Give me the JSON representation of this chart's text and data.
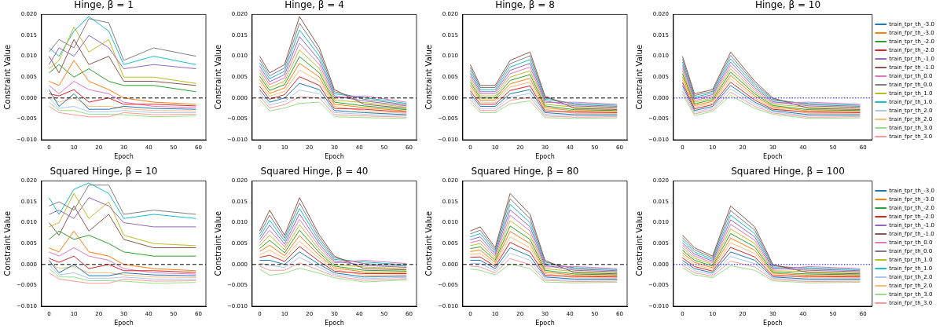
{
  "chart_data": [
    {
      "type": "line",
      "title": "Hinge, β = 1",
      "xlabel": "Epoch",
      "ylabel": "Constraint Value",
      "grid": false,
      "marker": "none",
      "legend": false,
      "xlim": [
        -3,
        63
      ],
      "xticks": [
        0,
        10,
        20,
        30,
        40,
        50,
        60
      ],
      "ylim": [
        -0.01,
        0.02
      ],
      "yticks": [
        {
          "value": -0.01,
          "label": "−0.010"
        },
        {
          "value": -0.005,
          "label": "−0.005"
        },
        {
          "value": 0,
          "label": "0.000"
        },
        {
          "value": 0.005,
          "label": "0.005"
        },
        {
          "value": 0.01,
          "label": "0.010"
        },
        {
          "value": 0.015,
          "label": "0.015"
        },
        {
          "value": 0.02,
          "label": "0.020"
        }
      ],
      "ref_lines": [
        {
          "axis": "y",
          "value": 0,
          "color": "#000000",
          "line_style": "dashed"
        }
      ],
      "x": [
        0,
        4,
        10,
        16,
        24,
        30,
        42,
        59
      ],
      "series": [
        {
          "color": "#1f77b4",
          "values": [
            0.002,
            -0.002,
            0.001,
            -0.0027,
            -0.0027,
            -0.002,
            -0.0025,
            -0.0027
          ]
        },
        {
          "color": "#ff7f0e",
          "values": [
            0.004,
            0.003,
            0.009,
            0.004,
            0.002,
            0,
            -0.001,
            -0.0015
          ]
        },
        {
          "color": "#2ca02c",
          "values": [
            0.006,
            0.008,
            0.005,
            0.007,
            0.004,
            0.003,
            0.003,
            0.0015
          ]
        },
        {
          "color": "#d62728",
          "values": [
            0.001,
            0.0005,
            0.002,
            -0.001,
            0,
            -0.0015,
            -0.0015,
            -0.0019
          ]
        },
        {
          "color": "#9467bd",
          "values": [
            0.008,
            0.012,
            0.01,
            0.015,
            0.012,
            0.007,
            0.008,
            0.007
          ]
        },
        {
          "color": "#8c564b",
          "values": [
            0.01,
            0.006,
            0.014,
            0.008,
            0.01,
            0.004,
            0.004,
            0.003
          ]
        },
        {
          "color": "#e377c2",
          "values": [
            0.003,
            0.001,
            0.004,
            0.002,
            0.001,
            -0.001,
            -0.002,
            -0.0023
          ]
        },
        {
          "color": "#7f7f7f",
          "values": [
            0.011,
            0.014,
            0.012,
            0.019,
            0.018,
            0.009,
            0.012,
            0.01
          ]
        },
        {
          "color": "#bcbd22",
          "values": [
            0.007,
            0.009,
            0.017,
            0.011,
            0.014,
            0.005,
            0.005,
            0.0035
          ]
        },
        {
          "color": "#17becf",
          "values": [
            0.012,
            0.01,
            0.016,
            0.0195,
            0.016,
            0.008,
            0.01,
            0.008
          ]
        },
        {
          "color": "#aec7e8",
          "values": [
            0,
            -0.0025,
            -0.002,
            -0.0033,
            -0.0033,
            -0.003,
            -0.0035,
            -0.0035
          ]
        },
        {
          "color": "#ffbb78",
          "values": [
            0.0005,
            -0.001,
            0,
            -0.002,
            -0.002,
            -0.0025,
            -0.003,
            -0.0031
          ]
        },
        {
          "color": "#98df8a",
          "values": [
            -0.001,
            -0.003,
            -0.003,
            -0.0039,
            -0.0039,
            -0.004,
            -0.0045,
            -0.0043
          ]
        },
        {
          "color": "#ff9896",
          "values": [
            -0.002,
            -0.0035,
            -0.004,
            -0.0045,
            -0.0045,
            -0.0035,
            -0.004,
            -0.0039
          ]
        }
      ]
    },
    {
      "type": "line",
      "title": "Hinge, β = 4",
      "xlabel": "Epoch",
      "ylabel": "Constraint Value",
      "grid": false,
      "marker": "none",
      "legend": false,
      "xlim": [
        -3,
        63
      ],
      "xticks": [
        0,
        10,
        20,
        30,
        40,
        50,
        60
      ],
      "ylim": [
        -0.01,
        0.02
      ],
      "yticks": [
        {
          "value": -0.01,
          "label": "−0.010"
        },
        {
          "value": -0.005,
          "label": "−0.005"
        },
        {
          "value": 0,
          "label": "0.000"
        },
        {
          "value": 0.005,
          "label": "0.005"
        },
        {
          "value": 0.01,
          "label": "0.010"
        },
        {
          "value": 0.015,
          "label": "0.015"
        },
        {
          "value": 0.02,
          "label": "0.020"
        }
      ],
      "ref_lines": [
        {
          "axis": "y",
          "value": 0,
          "color": "#000000",
          "line_style": "dashed"
        }
      ],
      "x": [
        0,
        4,
        10,
        16,
        24,
        30,
        42,
        59
      ],
      "series": [
        {
          "color": "#1f77b4",
          "values": [
            0.002,
            -0.001,
            0,
            0.0035,
            0.002,
            -0.003,
            -0.0035,
            -0.004
          ]
        },
        {
          "color": "#ff7f0e",
          "values": [
            0.0044,
            0.0011,
            0.0024,
            0.0083,
            0.005,
            -0.0015,
            -0.0023,
            -0.0031
          ]
        },
        {
          "color": "#2ca02c",
          "values": [
            0.0052,
            0.0018,
            0.0032,
            0.0099,
            0.006,
            -0.001,
            -0.0019,
            -0.0028
          ]
        },
        {
          "color": "#d62728",
          "values": [
            0.0028,
            -0.0003,
            0.0008,
            0.0051,
            0.003,
            -0.0025,
            -0.0027,
            -0.0034
          ]
        },
        {
          "color": "#9467bd",
          "values": [
            0.0076,
            0.0039,
            0.0056,
            0.0147,
            0.009,
            0.0005,
            -0.0007,
            -0.0019
          ]
        },
        {
          "color": "#8c564b",
          "values": [
            0.01,
            0.006,
            0.008,
            0.0195,
            0.012,
            0.002,
            -0.0015,
            -0.0025
          ]
        },
        {
          "color": "#e377c2",
          "values": [
            0.0068,
            0.0032,
            0.0048,
            0.0131,
            0.008,
            0,
            0.0005,
            -0.001
          ]
        },
        {
          "color": "#7f7f7f",
          "values": [
            0.0092,
            0.0053,
            0.0072,
            0.0179,
            0.011,
            0.0015,
            -0.0003,
            -0.0016
          ]
        },
        {
          "color": "#bcbd22",
          "values": [
            0.006,
            0.0025,
            0.004,
            0.0115,
            0.007,
            -0.0005,
            -0.0011,
            -0.0022
          ]
        },
        {
          "color": "#17becf",
          "values": [
            0.0084,
            0.0046,
            0.0064,
            0.0163,
            0.01,
            0.001,
            0.0001,
            -0.0013
          ]
        },
        {
          "color": "#aec7e8",
          "values": [
            0.0012,
            -0.0017,
            -0.0008,
            0.0019,
            0.001,
            -0.0035,
            -0.0039,
            -0.0043
          ]
        },
        {
          "color": "#ffbb78",
          "values": [
            0.0036,
            0.0004,
            0.0016,
            0.0067,
            0.004,
            -0.002,
            -0.0031,
            -0.0037
          ]
        },
        {
          "color": "#98df8a",
          "values": [
            -0.0004,
            -0.0031,
            -0.0024,
            -0.0013,
            -0.001,
            -0.0045,
            -0.0047,
            -0.0049
          ]
        },
        {
          "color": "#ff9896",
          "values": [
            0.0004,
            -0.0024,
            -0.0016,
            0.0003,
            0,
            -0.004,
            -0.0043,
            -0.0046
          ]
        }
      ]
    },
    {
      "type": "line",
      "title": "Hinge, β = 8",
      "xlabel": "Epoch",
      "ylabel": "Constraint Value",
      "grid": false,
      "marker": "none",
      "legend": false,
      "xlim": [
        -3,
        63
      ],
      "xticks": [
        0,
        10,
        20,
        30,
        40,
        50,
        60
      ],
      "ylim": [
        -0.01,
        0.02
      ],
      "yticks": [
        {
          "value": -0.01,
          "label": "−0.010"
        },
        {
          "value": -0.005,
          "label": "−0.005"
        },
        {
          "value": 0,
          "label": "0.000"
        },
        {
          "value": 0.005,
          "label": "0.005"
        },
        {
          "value": 0.01,
          "label": "0.010"
        },
        {
          "value": 0.015,
          "label": "0.015"
        },
        {
          "value": 0.02,
          "label": "0.020"
        }
      ],
      "ref_lines": [
        {
          "axis": "y",
          "value": 0,
          "color": "#000000",
          "line_style": "dashed"
        }
      ],
      "x": [
        0,
        4,
        10,
        16,
        24,
        30,
        42,
        59
      ],
      "series": [
        {
          "color": "#1f77b4",
          "values": [
            0.001,
            -0.002,
            -0.002,
            0.001,
            0.002,
            -0.0035,
            -0.004,
            -0.004
          ]
        },
        {
          "color": "#ff7f0e",
          "values": [
            0.0031,
            -0.0005,
            -0.0005,
            0.0034,
            0.0047,
            -0.0023,
            -0.0031,
            -0.00325
          ]
        },
        {
          "color": "#2ca02c",
          "values": [
            0.0038,
            0,
            0,
            0.0042,
            0.0056,
            -0.0019,
            -0.0028,
            -0.003
          ]
        },
        {
          "color": "#d62728",
          "values": [
            0.0017,
            -0.0015,
            -0.0015,
            0.0018,
            0.0029,
            -0.0031,
            -0.0034,
            -0.0035
          ]
        },
        {
          "color": "#9467bd",
          "values": [
            0.0059,
            0.0015,
            0.0015,
            0.0066,
            0.0083,
            -0.0007,
            -0.0019,
            -0.00225
          ]
        },
        {
          "color": "#8c564b",
          "values": [
            0.008,
            0.003,
            0.003,
            0.009,
            0.011,
            0.0005,
            -0.0025,
            -0.00275
          ]
        },
        {
          "color": "#e377c2",
          "values": [
            0.0052,
            0.001,
            0.001,
            0.0058,
            0.0074,
            -0.0011,
            -0.001,
            -0.0015
          ]
        },
        {
          "color": "#7f7f7f",
          "values": [
            0.0073,
            0.0025,
            0.0025,
            0.0082,
            0.0101,
            0.0001,
            -0.0016,
            -0.002
          ]
        },
        {
          "color": "#bcbd22",
          "values": [
            0.0045,
            0.0005,
            0.0005,
            0.005,
            0.0065,
            -0.0015,
            -0.0022,
            -0.0025
          ]
        },
        {
          "color": "#17becf",
          "values": [
            0.0066,
            0.002,
            0.002,
            0.0074,
            0.0092,
            -0.0003,
            -0.0013,
            -0.00175
          ]
        },
        {
          "color": "#aec7e8",
          "values": [
            0.0003,
            -0.0025,
            -0.0025,
            0.0002,
            0.0011,
            -0.0039,
            -0.0043,
            -0.00425
          ]
        },
        {
          "color": "#ffbb78",
          "values": [
            0.0024,
            -0.001,
            -0.001,
            0.0026,
            0.0038,
            -0.0027,
            -0.0037,
            -0.00375
          ]
        },
        {
          "color": "#98df8a",
          "values": [
            -0.0011,
            -0.0035,
            -0.0035,
            -0.0014,
            -0.0007,
            -0.0047,
            -0.0049,
            -0.00475
          ]
        },
        {
          "color": "#ff9896",
          "values": [
            -0.0004,
            -0.003,
            -0.003,
            -0.0006,
            0.0002,
            -0.0043,
            -0.0046,
            -0.0045
          ]
        }
      ]
    },
    {
      "type": "line",
      "title": "Hinge, β = 10",
      "xlabel": "Epoch",
      "ylabel": "Constraint Value",
      "grid": false,
      "marker": "none",
      "legend": "right",
      "xlim": [
        -3,
        63
      ],
      "xticks": [
        0,
        10,
        20,
        30,
        40,
        50,
        60
      ],
      "ylim": [
        -0.01,
        0.02
      ],
      "yticks": [
        {
          "value": -0.01,
          "label": "−0.010"
        },
        {
          "value": -0.005,
          "label": "−0.005"
        },
        {
          "value": 0,
          "label": "0.000"
        },
        {
          "value": 0.005,
          "label": "0.005"
        },
        {
          "value": 0.01,
          "label": "0.010"
        },
        {
          "value": 0.015,
          "label": "0.015"
        },
        {
          "value": 0.02,
          "label": "0.020"
        }
      ],
      "ref_lines": [
        {
          "axis": "y",
          "value": 0,
          "color": "#0000ff",
          "line_style": "dotted"
        }
      ],
      "x": [
        0,
        4,
        10,
        16,
        24,
        30,
        42,
        59
      ],
      "series": [
        {
          "name": "train_tpr_th_-3.0",
          "color": "#1f77b4",
          "values": [
            0.003,
            -0.003,
            -0.002,
            0.003,
            -0.001,
            -0.003,
            -0.004,
            -0.004
          ]
        },
        {
          "name": "train_fpr_th_-3.0",
          "color": "#ff7f0e",
          "values": [
            0.0051,
            -0.0018,
            -0.0008,
            0.0054,
            0.0005,
            -0.0021,
            -0.0031,
            -0.00325
          ]
        },
        {
          "name": "train_tpr_th_-2.0",
          "color": "#2ca02c",
          "values": [
            0.0058,
            -0.0014,
            -0.0004,
            0.0062,
            0.001,
            -0.0018,
            -0.0028,
            -0.003
          ]
        },
        {
          "name": "train_fpr_th_-2.0",
          "color": "#d62728",
          "values": [
            0.0037,
            -0.0026,
            -0.0016,
            0.0038,
            -0.0005,
            -0.0027,
            -0.0034,
            -0.0035
          ]
        },
        {
          "name": "train_tpr_th_-1.0",
          "color": "#9467bd",
          "values": [
            0.0079,
            -0.0002,
            0.0008,
            0.0086,
            0.0025,
            -0.0009,
            -0.0019,
            -0.00225
          ]
        },
        {
          "name": "train_fpr_th_-1.0",
          "color": "#8c564b",
          "values": [
            0.01,
            0.001,
            0.002,
            0.011,
            0.004,
            0,
            -0.0025,
            -0.00275
          ]
        },
        {
          "name": "train_tpr_th_0.0",
          "color": "#e377c2",
          "values": [
            0.0072,
            -0.0006,
            0.0004,
            0.0078,
            0.002,
            -0.0012,
            -0.001,
            -0.0015
          ]
        },
        {
          "name": "train_fpr_th_0.0",
          "color": "#7f7f7f",
          "values": [
            0.0093,
            0.0006,
            0.0016,
            0.0102,
            0.0035,
            -0.0003,
            -0.0016,
            -0.002
          ]
        },
        {
          "name": "train_tpr_th_1.0",
          "color": "#bcbd22",
          "values": [
            0.0065,
            -0.001,
            0,
            0.007,
            0.0015,
            -0.0015,
            -0.0022,
            -0.0025
          ]
        },
        {
          "name": "train_fpr_th_1.0",
          "color": "#17becf",
          "values": [
            0.0086,
            0.0002,
            0.0012,
            0.0094,
            0.003,
            -0.0006,
            -0.0013,
            -0.00175
          ]
        },
        {
          "name": "train_tpr_th_2.0",
          "color": "#aec7e8",
          "values": [
            0.0023,
            -0.0034,
            -0.0024,
            0.0022,
            -0.0015,
            -0.0033,
            -0.0043,
            -0.00425
          ]
        },
        {
          "name": "train_fpr_th_2.0",
          "color": "#ffbb78",
          "values": [
            0.0044,
            -0.0022,
            -0.0012,
            0.0046,
            0,
            -0.0024,
            -0.0037,
            -0.00375
          ]
        },
        {
          "name": "train_tpr_th_3.0",
          "color": "#98df8a",
          "values": [
            0.0009,
            -0.0042,
            -0.0032,
            0.0006,
            -0.0025,
            -0.0039,
            -0.0049,
            -0.00475
          ]
        },
        {
          "name": "train_fpr_th_3.0",
          "color": "#ff9896",
          "values": [
            0.0016,
            -0.0038,
            -0.0028,
            0.0014,
            -0.002,
            -0.0036,
            -0.0046,
            -0.0045
          ]
        }
      ]
    },
    {
      "type": "line",
      "title": "Squared Hinge, β = 10",
      "xlabel": "Epoch",
      "ylabel": "Constraint Value",
      "grid": false,
      "marker": "none",
      "legend": false,
      "xlim": [
        -3,
        63
      ],
      "xticks": [
        0,
        10,
        20,
        30,
        40,
        50,
        60
      ],
      "ylim": [
        -0.01,
        0.02
      ],
      "yticks": [
        {
          "value": -0.01,
          "label": "−0.010"
        },
        {
          "value": -0.005,
          "label": "−0.005"
        },
        {
          "value": 0,
          "label": "0.000"
        },
        {
          "value": 0.005,
          "label": "0.005"
        },
        {
          "value": 0.01,
          "label": "0.010"
        },
        {
          "value": 0.015,
          "label": "0.015"
        },
        {
          "value": 0.02,
          "label": "0.020"
        }
      ],
      "ref_lines": [
        {
          "axis": "y",
          "value": 0,
          "color": "#000000",
          "line_style": "dashed"
        }
      ],
      "x": [
        0,
        4,
        10,
        16,
        24,
        30,
        42,
        59
      ],
      "series": [
        {
          "color": "#1f77b4",
          "values": [
            0.001,
            -0.002,
            0,
            -0.0027,
            -0.0027,
            -0.002,
            -0.0025,
            -0.0027
          ]
        },
        {
          "color": "#ff7f0e",
          "values": [
            0.004,
            0.003,
            0.008,
            0.003,
            0.002,
            0,
            -0.001,
            -0.0015
          ]
        },
        {
          "color": "#2ca02c",
          "values": [
            0.006,
            0.008,
            0.006,
            0.007,
            0.005,
            0.003,
            0.002,
            0.002
          ]
        },
        {
          "color": "#d62728",
          "values": [
            0.0015,
            0.0005,
            0.002,
            -0.001,
            0,
            -0.0015,
            -0.0015,
            -0.0019
          ]
        },
        {
          "color": "#9467bd",
          "values": [
            0.012,
            0.013,
            0.011,
            0.016,
            0.014,
            0.01,
            0.009,
            0.009
          ]
        },
        {
          "color": "#8c564b",
          "values": [
            0.01,
            0.007,
            0.014,
            0.008,
            0.012,
            0.006,
            0.004,
            0.004
          ]
        },
        {
          "color": "#e377c2",
          "values": [
            0.003,
            0.002,
            0.004,
            0.002,
            0.001,
            -0.001,
            -0.002,
            -0.0023
          ]
        },
        {
          "color": "#7f7f7f",
          "values": [
            0.014,
            0.015,
            0.013,
            0.019,
            0.019,
            0.012,
            0.013,
            0.012
          ]
        },
        {
          "color": "#bcbd22",
          "values": [
            0.009,
            0.01,
            0.017,
            0.011,
            0.015,
            0.007,
            0.005,
            0.0045
          ]
        },
        {
          "color": "#17becf",
          "values": [
            0.016,
            0.012,
            0.018,
            0.0195,
            0.017,
            0.011,
            0.012,
            0.011
          ]
        },
        {
          "color": "#aec7e8",
          "values": [
            0,
            -0.0025,
            -0.002,
            -0.0033,
            -0.0033,
            -0.003,
            -0.0035,
            -0.0035
          ]
        },
        {
          "color": "#ffbb78",
          "values": [
            0.0005,
            -0.001,
            -0.0005,
            -0.002,
            -0.002,
            -0.0025,
            -0.003,
            -0.0031
          ]
        },
        {
          "color": "#98df8a",
          "values": [
            -0.001,
            -0.003,
            -0.003,
            -0.0039,
            -0.0039,
            -0.004,
            -0.0045,
            -0.0043
          ]
        },
        {
          "color": "#ff9896",
          "values": [
            -0.002,
            -0.0035,
            -0.004,
            -0.0045,
            -0.0045,
            -0.0035,
            -0.004,
            -0.0039
          ]
        }
      ]
    },
    {
      "type": "line",
      "title": "Squared Hinge, β = 40",
      "xlabel": "Epoch",
      "ylabel": "Constraint Value",
      "grid": false,
      "marker": "none",
      "legend": false,
      "xlim": [
        -3,
        63
      ],
      "xticks": [
        0,
        10,
        20,
        30,
        40,
        50,
        60
      ],
      "ylim": [
        -0.01,
        0.02
      ],
      "yticks": [
        {
          "value": -0.01,
          "label": "−0.010"
        },
        {
          "value": -0.005,
          "label": "−0.005"
        },
        {
          "value": 0,
          "label": "0.000"
        },
        {
          "value": 0.005,
          "label": "0.005"
        },
        {
          "value": 0.01,
          "label": "0.010"
        },
        {
          "value": 0.015,
          "label": "0.015"
        },
        {
          "value": 0.02,
          "label": "0.020"
        }
      ],
      "ref_lines": [
        {
          "axis": "y",
          "value": 0,
          "color": "#000000",
          "line_style": "dashed"
        }
      ],
      "x": [
        0,
        4,
        10,
        16,
        24,
        30,
        42,
        59
      ],
      "series": [
        {
          "color": "#1f77b4",
          "values": [
            0.001,
            0.001,
            0,
            0.003,
            0,
            -0.002,
            -0.003,
            -0.0028
          ]
        },
        {
          "color": "#ff7f0e",
          "values": [
            0.0031,
            0.0046,
            0.0021,
            0.0069,
            0.0021,
            -0.0008,
            -0.0018,
            -0.0019
          ]
        },
        {
          "color": "#2ca02c",
          "values": [
            0.0038,
            0.0058,
            0.0028,
            0.0082,
            0.0028,
            -0.0004,
            -0.0014,
            -0.0016
          ]
        },
        {
          "color": "#d62728",
          "values": [
            0.0017,
            0.0022,
            0.0007,
            0.0043,
            0.0007,
            -0.0016,
            -0.0022,
            -0.0022
          ]
        },
        {
          "color": "#9467bd",
          "values": [
            0.0059,
            0.0094,
            0.0049,
            0.0121,
            0.0049,
            0.0008,
            -0.0002,
            -0.0007
          ]
        },
        {
          "color": "#8c564b",
          "values": [
            0.008,
            0.013,
            0.007,
            0.016,
            0.007,
            0.002,
            -0.001,
            -0.0013
          ]
        },
        {
          "color": "#e377c2",
          "values": [
            0.0052,
            0.0082,
            0.0042,
            0.0108,
            0.0042,
            0.0004,
            0.001,
            0.0002
          ]
        },
        {
          "color": "#7f7f7f",
          "values": [
            0.0073,
            0.0118,
            0.0063,
            0.0147,
            0.0063,
            0.0016,
            0.0002,
            -0.0004
          ]
        },
        {
          "color": "#bcbd22",
          "values": [
            0.0045,
            0.007,
            0.0035,
            0.0095,
            0.0035,
            0,
            -0.0006,
            -0.001
          ]
        },
        {
          "color": "#17becf",
          "values": [
            0.0066,
            0.0106,
            0.0056,
            0.0134,
            0.0056,
            0.0012,
            0.0006,
            -0.0001
          ]
        },
        {
          "color": "#aec7e8",
          "values": [
            0.0003,
            -0.0002,
            -0.0007,
            0.0017,
            -0.0007,
            -0.0024,
            -0.0034,
            -0.0031
          ]
        },
        {
          "color": "#ffbb78",
          "values": [
            0.0024,
            0.0034,
            0.0014,
            0.0056,
            0.0014,
            -0.0012,
            -0.0026,
            -0.0025
          ]
        },
        {
          "color": "#98df8a",
          "values": [
            -0.0011,
            -0.0026,
            -0.0021,
            -0.0009,
            -0.0021,
            -0.0032,
            -0.0042,
            -0.0037
          ]
        },
        {
          "color": "#ff9896",
          "values": [
            -0.0004,
            -0.0014,
            -0.0014,
            0.0004,
            -0.0014,
            -0.0028,
            -0.0038,
            -0.0034
          ]
        }
      ]
    },
    {
      "type": "line",
      "title": "Squared Hinge, β = 80",
      "xlabel": "Epoch",
      "ylabel": "Constraint Value",
      "grid": false,
      "marker": "none",
      "legend": false,
      "xlim": [
        -3,
        63
      ],
      "xticks": [
        0,
        10,
        20,
        30,
        40,
        50,
        60
      ],
      "ylim": [
        -0.01,
        0.02
      ],
      "yticks": [
        {
          "value": -0.01,
          "label": "−0.010"
        },
        {
          "value": -0.005,
          "label": "−0.005"
        },
        {
          "value": 0,
          "label": "0.000"
        },
        {
          "value": 0.005,
          "label": "0.005"
        },
        {
          "value": 0.01,
          "label": "0.010"
        },
        {
          "value": 0.015,
          "label": "0.015"
        },
        {
          "value": 0.02,
          "label": "0.020"
        }
      ],
      "ref_lines": [
        {
          "axis": "y",
          "value": 0,
          "color": "#000000",
          "line_style": "dashed"
        }
      ],
      "x": [
        0,
        4,
        10,
        16,
        24,
        30,
        42,
        59
      ],
      "series": [
        {
          "color": "#1f77b4",
          "values": [
            0.001,
            0.001,
            -0.001,
            0.004,
            0.002,
            -0.003,
            -0.0035,
            -0.0035
          ]
        },
        {
          "color": "#ff7f0e",
          "values": [
            0.0031,
            0.0034,
            0.0005,
            0.0079,
            0.005,
            -0.0018,
            -0.0026,
            -0.00275
          ]
        },
        {
          "color": "#2ca02c",
          "values": [
            0.0038,
            0.0042,
            0.001,
            0.0092,
            0.006,
            -0.0014,
            -0.0023,
            -0.0025
          ]
        },
        {
          "color": "#d62728",
          "values": [
            0.0017,
            0.0018,
            -0.0005,
            0.0053,
            0.003,
            -0.0026,
            -0.0029,
            -0.003
          ]
        },
        {
          "color": "#9467bd",
          "values": [
            0.0059,
            0.0066,
            0.0025,
            0.0131,
            0.009,
            -0.0002,
            -0.0014,
            -0.00175
          ]
        },
        {
          "color": "#8c564b",
          "values": [
            0.008,
            0.009,
            0.004,
            0.017,
            0.012,
            0.001,
            -0.002,
            -0.00225
          ]
        },
        {
          "color": "#e377c2",
          "values": [
            0.0052,
            0.0058,
            0.002,
            0.0118,
            0.008,
            -0.0006,
            -0.0005,
            -0.001
          ]
        },
        {
          "color": "#7f7f7f",
          "values": [
            0.0073,
            0.0082,
            0.0035,
            0.0157,
            0.011,
            0.0006,
            -0.0011,
            -0.0015
          ]
        },
        {
          "color": "#bcbd22",
          "values": [
            0.0045,
            0.005,
            0.0015,
            0.0105,
            0.007,
            -0.001,
            -0.0017,
            -0.002
          ]
        },
        {
          "color": "#17becf",
          "values": [
            0.0066,
            0.0074,
            0.003,
            0.0144,
            0.01,
            0.0002,
            -0.0008,
            -0.00125
          ]
        },
        {
          "color": "#aec7e8",
          "values": [
            0.0003,
            0.0002,
            -0.0015,
            0.0027,
            0.001,
            -0.0034,
            -0.0038,
            -0.00375
          ]
        },
        {
          "color": "#ffbb78",
          "values": [
            0.0024,
            0.0026,
            0,
            0.0066,
            0.004,
            -0.0022,
            -0.0032,
            -0.00325
          ]
        },
        {
          "color": "#98df8a",
          "values": [
            -0.0011,
            -0.0014,
            -0.0025,
            0.0001,
            -0.001,
            -0.0042,
            -0.0044,
            -0.00425
          ]
        },
        {
          "color": "#ff9896",
          "values": [
            -0.0004,
            -0.0006,
            -0.002,
            0.0014,
            0,
            -0.0038,
            -0.0041,
            -0.004
          ]
        }
      ]
    },
    {
      "type": "line",
      "title": "Squared Hinge, β = 100",
      "xlabel": "Epoch",
      "ylabel": "Constraint Value",
      "grid": false,
      "marker": "none",
      "legend": "right",
      "xlim": [
        -3,
        63
      ],
      "xticks": [
        0,
        10,
        20,
        30,
        40,
        50,
        60
      ],
      "ylim": [
        -0.01,
        0.02
      ],
      "yticks": [
        {
          "value": -0.01,
          "label": "−0.010"
        },
        {
          "value": -0.005,
          "label": "−0.005"
        },
        {
          "value": 0,
          "label": "0.000"
        },
        {
          "value": 0.005,
          "label": "0.005"
        },
        {
          "value": 0.01,
          "label": "0.010"
        },
        {
          "value": 0.015,
          "label": "0.015"
        },
        {
          "value": 0.02,
          "label": "0.020"
        }
      ],
      "ref_lines": [
        {
          "axis": "y",
          "value": 0,
          "color": "#0000ff",
          "line_style": "dotted"
        }
      ],
      "x": [
        0,
        4,
        10,
        16,
        24,
        30,
        42,
        59
      ],
      "series": [
        {
          "name": "train_tpr_th_-3.0",
          "color": "#1f77b4",
          "values": [
            0.001,
            -0.001,
            -0.002,
            0.003,
            0.001,
            -0.003,
            -0.0035,
            -0.0035
          ]
        },
        {
          "name": "train_fpr_th_-3.0",
          "color": "#ff7f0e",
          "values": [
            0.0028,
            0.0005,
            -0.0008,
            0.0063,
            0.0034,
            -0.0021,
            -0.0026,
            -0.00275
          ]
        },
        {
          "name": "train_tpr_th_-2.0",
          "color": "#2ca02c",
          "values": [
            0.0034,
            0.001,
            -0.0004,
            0.0074,
            0.0042,
            -0.0018,
            -0.0023,
            -0.0025
          ]
        },
        {
          "name": "train_fpr_th_-2.0",
          "color": "#d62728",
          "values": [
            0.0016,
            -0.0005,
            -0.0016,
            0.0041,
            0.0018,
            -0.0027,
            -0.0029,
            -0.003
          ]
        },
        {
          "name": "train_tpr_th_-1.0",
          "color": "#9467bd",
          "values": [
            0.0052,
            0.0025,
            0.0008,
            0.0107,
            0.0066,
            -0.0009,
            -0.0014,
            -0.00175
          ]
        },
        {
          "name": "train_fpr_th_-1.0",
          "color": "#8c564b",
          "values": [
            0.007,
            0.004,
            0.002,
            0.014,
            0.009,
            0,
            -0.002,
            -0.00225
          ]
        },
        {
          "name": "train_tpr_th_0.0",
          "color": "#e377c2",
          "values": [
            0.0046,
            0.002,
            0.0004,
            0.0096,
            0.0058,
            -0.0012,
            -0.0005,
            -0.001
          ]
        },
        {
          "name": "train_fpr_th_0.0",
          "color": "#7f7f7f",
          "values": [
            0.0064,
            0.0035,
            0.0016,
            0.0129,
            0.0082,
            -0.0003,
            -0.0011,
            -0.0015
          ]
        },
        {
          "name": "train_tpr_th_1.0",
          "color": "#bcbd22",
          "values": [
            0.004,
            0.0015,
            0,
            0.0085,
            0.005,
            -0.0015,
            -0.0017,
            -0.002
          ]
        },
        {
          "name": "train_fpr_th_1.0",
          "color": "#17becf",
          "values": [
            0.0058,
            0.003,
            0.0012,
            0.0118,
            0.0074,
            -0.0006,
            -0.0008,
            -0.00125
          ]
        },
        {
          "name": "train_tpr_th_2.0",
          "color": "#aec7e8",
          "values": [
            0.0004,
            -0.0015,
            -0.0024,
            0.0019,
            0.0002,
            -0.0033,
            -0.0038,
            -0.00375
          ]
        },
        {
          "name": "train_fpr_th_2.0",
          "color": "#ffbb78",
          "values": [
            0.0022,
            0,
            -0.0012,
            0.0052,
            0.0026,
            -0.0024,
            -0.0032,
            -0.00325
          ]
        },
        {
          "name": "train_tpr_th_3.0",
          "color": "#98df8a",
          "values": [
            -0.0008,
            -0.0025,
            -0.0032,
            -0.0003,
            -0.0014,
            -0.0039,
            -0.0044,
            -0.00425
          ]
        },
        {
          "name": "train_fpr_th_3.0",
          "color": "#ff9896",
          "values": [
            -0.0002,
            -0.002,
            -0.0028,
            0.0008,
            -0.0006,
            -0.0036,
            -0.0041,
            -0.004
          ]
        }
      ]
    }
  ]
}
